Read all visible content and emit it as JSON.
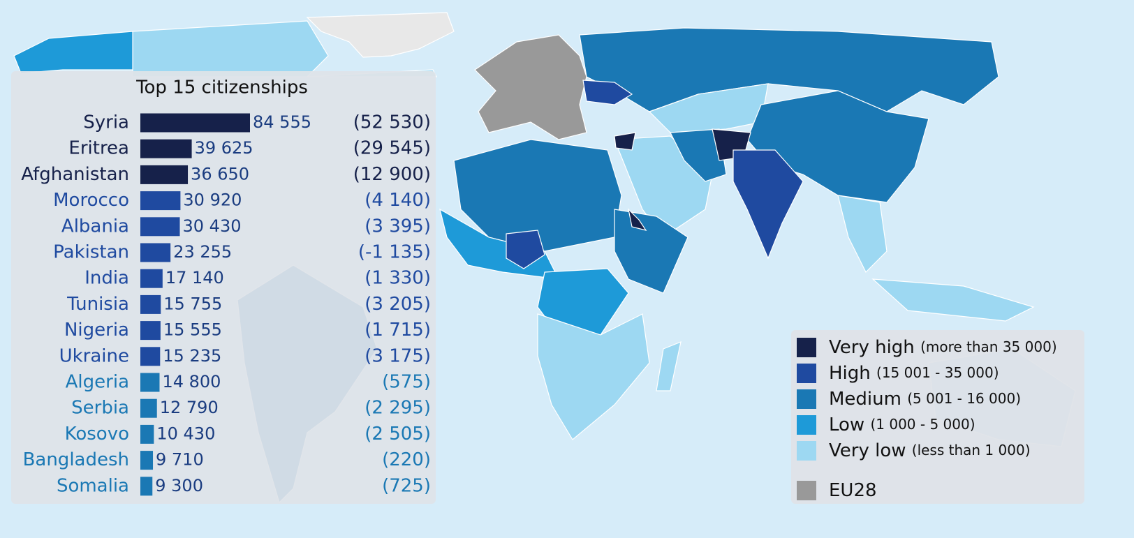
{
  "chart_data": {
    "type": "bar",
    "orientation": "horizontal",
    "title": "Top 15 citizenships",
    "categories": [
      "Syria",
      "Eritrea",
      "Afghanistan",
      "Morocco",
      "Albania",
      "Pakistan",
      "India",
      "Tunisia",
      "Nigeria",
      "Ukraine",
      "Algeria",
      "Serbia",
      "Kosovo",
      "Bangladesh",
      "Somalia"
    ],
    "values": [
      84555,
      39625,
      36650,
      30920,
      30430,
      23255,
      17140,
      15755,
      15555,
      15235,
      14800,
      12790,
      10430,
      9710,
      9300
    ],
    "value_labels": [
      "84 555",
      "39 625",
      "36 650",
      "30 920",
      "30 430",
      "23 255",
      "17 140",
      "15 755",
      "15 555",
      "15 235",
      "14 800",
      "12 790",
      "10 430",
      "9 710",
      "9 300"
    ],
    "change_labels": [
      "(52 530)",
      "(29 545)",
      "(12 900)",
      "(4 140)",
      "(3 395)",
      "(-1 135)",
      "(1 330)",
      "(3 205)",
      "(1 715)",
      "(3 175)",
      "(575)",
      "(2 295)",
      "(2 505)",
      "(220)",
      "(725)"
    ],
    "colors": [
      "#16214a",
      "#16214a",
      "#16214a",
      "#1f4aa0",
      "#1f4aa0",
      "#1f4aa0",
      "#1f4aa0",
      "#1f4aa0",
      "#1f4aa0",
      "#1f4aa0",
      "#1a78b4",
      "#1a78b4",
      "#1a78b4",
      "#1a78b4",
      "#1a78b4"
    ],
    "legend": [
      {
        "name": "Very high",
        "range": "(more than 35 000)",
        "color": "#16214a"
      },
      {
        "name": "High",
        "range": "(15 001 - 35 000)",
        "color": "#1f4aa0"
      },
      {
        "name": "Medium",
        "range": "(5 001 - 16 000)",
        "color": "#1a78b4"
      },
      {
        "name": "Low",
        "range": "(1 000 - 5 000)",
        "color": "#1e9ad8"
      },
      {
        "name": "Very low",
        "range": "(less than 1 000)",
        "color": "#9dd8f2"
      },
      {
        "name": "EU28",
        "color": "#999999"
      }
    ]
  }
}
